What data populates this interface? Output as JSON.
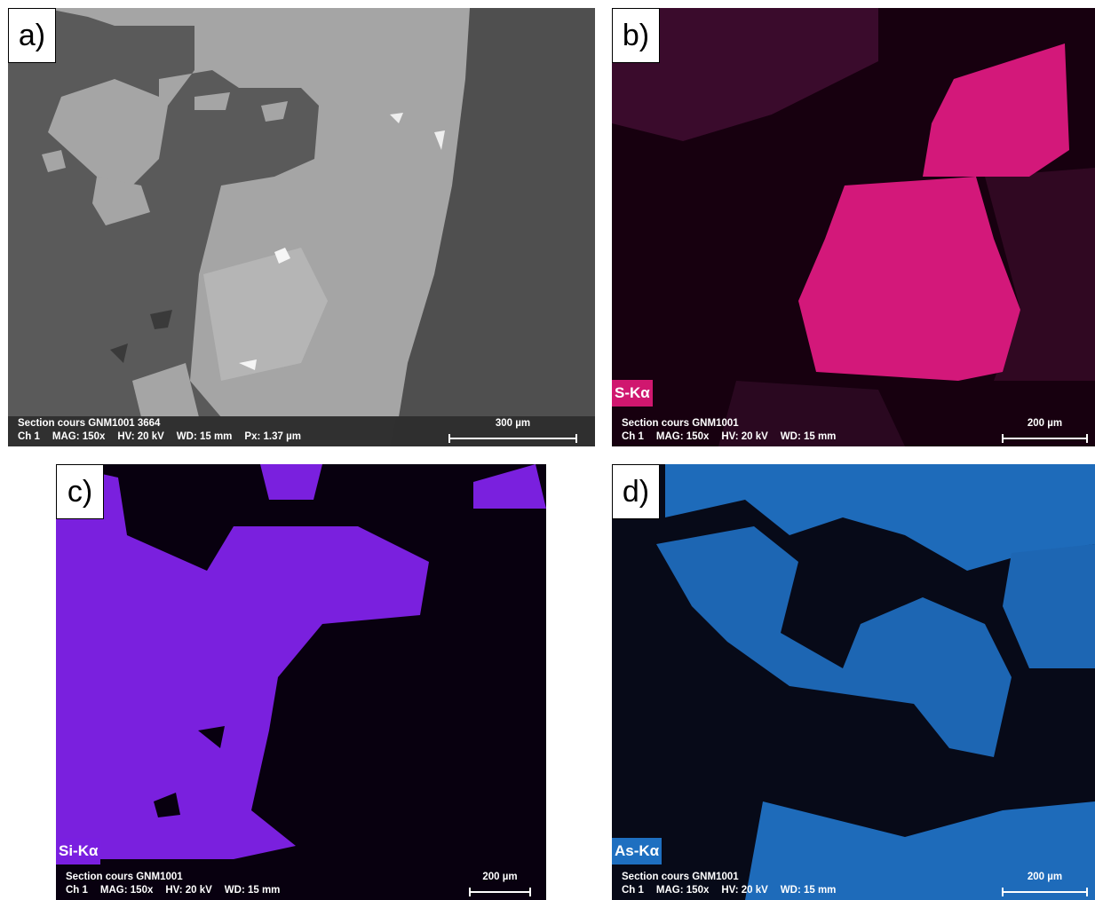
{
  "panels": [
    {
      "label": "a)",
      "info_line1": "Section cours GNM1001 3664",
      "info_line2": [
        "Ch 1",
        "MAG: 150x",
        "HV: 20 kV",
        "WD: 15 mm",
        "Px: 1.37 µm"
      ],
      "scale_bar": "300 µm"
    },
    {
      "label": "b)",
      "element_label": "S-Kα",
      "info_line1": "Section cours GNM1001",
      "info_line2": [
        "Ch 1",
        "MAG: 150x",
        "HV: 20 kV",
        "WD: 15 mm"
      ],
      "scale_bar": "200 µm"
    },
    {
      "label": "c)",
      "element_label": "Si-Kα",
      "info_line1": "Section cours GNM1001",
      "info_line2": [
        "Ch 1",
        "MAG: 150x",
        "HV: 20 kV",
        "WD: 15 mm"
      ],
      "scale_bar": "200 µm"
    },
    {
      "label": "d)",
      "element_label": "As-Kα",
      "info_line1": "Section cours GNM1001",
      "info_line2": [
        "Ch 1",
        "MAG: 150x",
        "HV: 20 kV",
        "WD: 15 mm"
      ],
      "scale_bar": "200 µm"
    }
  ]
}
